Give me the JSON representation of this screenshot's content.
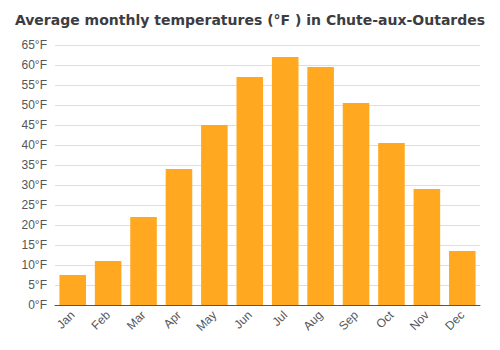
{
  "chart_data": {
    "type": "bar",
    "title": "Average monthly temperatures (°F ) in Chute-aux-Outardes",
    "categories": [
      "Jan",
      "Feb",
      "Mar",
      "Apr",
      "May",
      "Jun",
      "Jul",
      "Aug",
      "Sep",
      "Oct",
      "Nov",
      "Dec"
    ],
    "values": [
      7.5,
      11.0,
      22.0,
      34.0,
      45.0,
      57.0,
      62.0,
      59.5,
      50.5,
      40.5,
      29.0,
      13.5
    ],
    "color": "#FFA820",
    "ylim": [
      0,
      65
    ],
    "yticks": [
      {
        "value": 0,
        "label": "0°F"
      },
      {
        "value": 5,
        "label": "5°F"
      },
      {
        "value": 10,
        "label": "10°F"
      },
      {
        "value": 15,
        "label": "15°F"
      },
      {
        "value": 20,
        "label": "20°F"
      },
      {
        "value": 25,
        "label": "25°F"
      },
      {
        "value": 30,
        "label": "30°F"
      },
      {
        "value": 35,
        "label": "35°F"
      },
      {
        "value": 40,
        "label": "40°F"
      },
      {
        "value": 45,
        "label": "45°F"
      },
      {
        "value": 50,
        "label": "50°F"
      },
      {
        "value": 55,
        "label": "55°F"
      },
      {
        "value": 60,
        "label": "60°F"
      },
      {
        "value": 65,
        "label": "65°F"
      }
    ],
    "grid": true
  }
}
